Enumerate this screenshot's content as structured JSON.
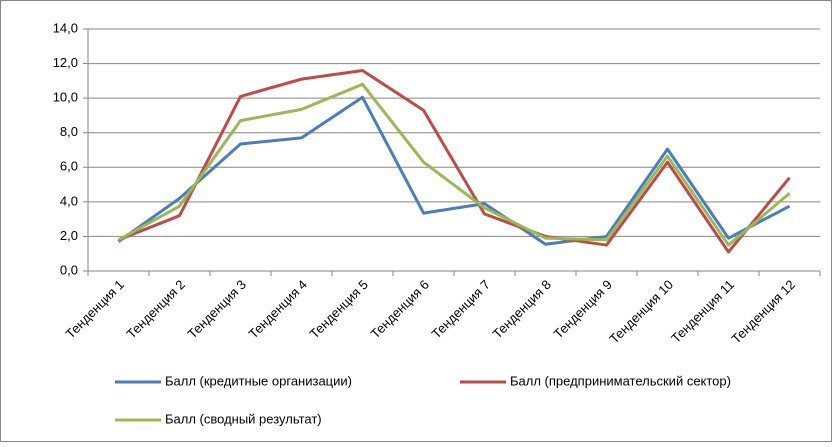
{
  "chart_data": {
    "type": "line",
    "categories": [
      "Тенденция 1",
      "Тенденция 2",
      "Тенденция 3",
      "Тенденция 4",
      "Тенденция 5",
      "Тенденция 6",
      "Тенденция 7",
      "Тенденция 8",
      "Тенденция 9",
      "Тенденция 10",
      "Тенденция 11",
      "Тенденция 12"
    ],
    "series": [
      {
        "name": "Балл (кредитные организации)",
        "color": "#4a7ebb",
        "values": [
          1.7,
          4.2,
          7.35,
          7.7,
          10.05,
          3.35,
          3.9,
          1.55,
          2.0,
          7.05,
          1.9,
          3.75
        ]
      },
      {
        "name": "Балл (предпринимательский сектор)",
        "color": "#be4b48",
        "values": [
          1.8,
          3.2,
          10.1,
          11.1,
          11.6,
          9.3,
          3.3,
          2.0,
          1.5,
          6.3,
          1.1,
          5.4
        ]
      },
      {
        "name": "Балл (сводный результат)",
        "color": "#98b954",
        "values": [
          1.8,
          3.75,
          8.7,
          9.35,
          10.8,
          6.3,
          3.65,
          1.9,
          1.8,
          6.65,
          1.5,
          4.5
        ]
      }
    ],
    "ylim": [
      0,
      14
    ],
    "yticks": [
      {
        "value": 0,
        "label": "0,0"
      },
      {
        "value": 2,
        "label": "2,0"
      },
      {
        "value": 4,
        "label": "4,0"
      },
      {
        "value": 6,
        "label": "6,0"
      },
      {
        "value": 8,
        "label": "8,0"
      },
      {
        "value": 10,
        "label": "10,0"
      },
      {
        "value": 12,
        "label": "12,0"
      },
      {
        "value": 14,
        "label": "14,0"
      }
    ],
    "grid": true
  }
}
